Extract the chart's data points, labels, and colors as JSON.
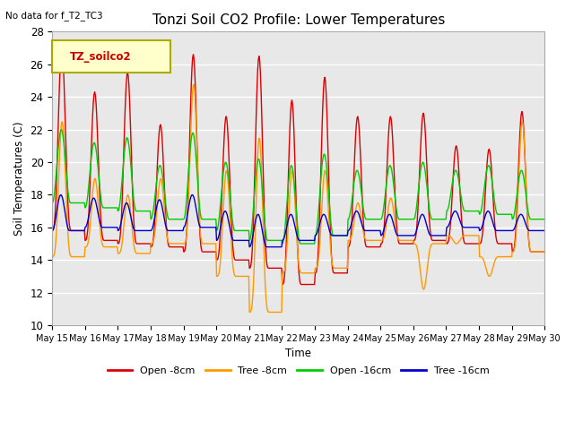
{
  "title": "Tonzi Soil CO2 Profile: Lower Temperatures",
  "top_left_text": "No data for f_T2_TC3",
  "ylabel": "Soil Temperatures (C)",
  "xlabel": "Time",
  "ylim": [
    10,
    28
  ],
  "yticks": [
    10,
    12,
    14,
    16,
    18,
    20,
    22,
    24,
    26,
    28
  ],
  "legend_box_text": "TZ_soilco2",
  "legend_items": [
    "Open -8cm",
    "Tree -8cm",
    "Open -16cm",
    "Tree -16cm"
  ],
  "line_colors": [
    "#dd0000",
    "#ff9900",
    "#00cc00",
    "#0000cc"
  ],
  "plot_bg_color": "#e8e8e8",
  "grid_color": "#ffffff",
  "spine_color": "#aaaaaa",
  "n_days": 15,
  "points_per_day": 48,
  "xtick_labels": [
    "May 15",
    "May 16",
    "May 17",
    "May 18",
    "May 19",
    "May 20",
    "May 21",
    "May 22",
    "May 23",
    "May 24",
    "May 25",
    "May 26",
    "May 27",
    "May 28",
    "May 29",
    "May 30"
  ],
  "o8_base": [
    15.8,
    15.2,
    15.0,
    14.8,
    14.5,
    14.0,
    13.5,
    12.5,
    13.2,
    14.8,
    15.0,
    15.2,
    15.0,
    15.0,
    14.5
  ],
  "o8_peak": [
    27.0,
    24.3,
    25.5,
    22.3,
    26.6,
    22.8,
    26.5,
    23.8,
    25.2,
    22.8,
    22.8,
    23.0,
    21.0,
    20.8,
    23.1
  ],
  "t8_base": [
    14.2,
    14.8,
    14.4,
    15.0,
    15.0,
    13.0,
    10.8,
    13.2,
    13.5,
    15.2,
    15.2,
    15.0,
    15.5,
    14.2,
    14.5
  ],
  "t8_peak": [
    22.5,
    19.0,
    18.0,
    19.0,
    24.8,
    19.5,
    21.5,
    19.5,
    19.5,
    17.5,
    17.8,
    12.2,
    15.0,
    13.0,
    22.5
  ],
  "o16_base": [
    17.5,
    17.2,
    17.0,
    16.5,
    16.5,
    15.8,
    15.2,
    15.0,
    15.5,
    16.5,
    16.5,
    16.5,
    17.0,
    16.8,
    16.5
  ],
  "o16_peak": [
    22.0,
    21.2,
    21.5,
    19.8,
    21.8,
    20.0,
    20.2,
    19.8,
    20.5,
    19.5,
    19.8,
    20.0,
    19.5,
    19.8,
    19.5
  ],
  "t16_base": [
    15.8,
    16.0,
    15.8,
    15.8,
    16.0,
    15.2,
    14.8,
    15.2,
    15.5,
    15.8,
    15.5,
    15.5,
    16.0,
    15.8,
    15.8
  ],
  "t16_peak": [
    18.0,
    17.8,
    17.5,
    17.7,
    18.0,
    17.0,
    16.8,
    16.8,
    16.8,
    17.0,
    16.8,
    16.8,
    17.0,
    17.0,
    16.8
  ]
}
